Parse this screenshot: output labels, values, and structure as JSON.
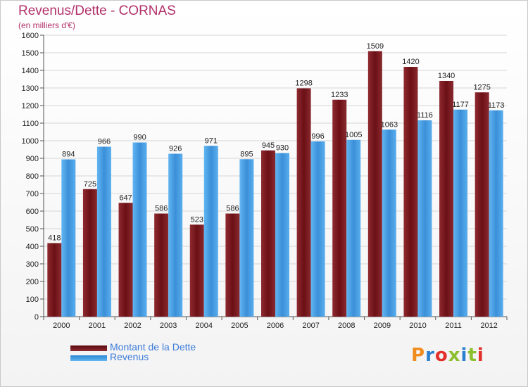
{
  "title": "Revenus/Dette - CORNAS",
  "subtitle": "(en milliers d'€)",
  "logo_text": "Proxiti",
  "colors": {
    "dette": "#7a1a20",
    "revenus": "#4aa3e8",
    "title": "#b2316a",
    "legend_text": "#3d7bd9"
  },
  "chart_data": {
    "type": "bar",
    "categories": [
      "2000",
      "2001",
      "2002",
      "2003",
      "2004",
      "2005",
      "2006",
      "2007",
      "2008",
      "2009",
      "2010",
      "2011",
      "2012"
    ],
    "series": [
      {
        "name": "Montant de la Dette",
        "values": [
          418,
          725,
          647,
          586,
          523,
          586,
          945,
          1298,
          1233,
          1509,
          1420,
          1340,
          1275
        ]
      },
      {
        "name": "Revenus",
        "values": [
          894,
          966,
          990,
          926,
          971,
          895,
          930,
          996,
          1005,
          1063,
          1116,
          1177,
          1173
        ]
      }
    ],
    "ylim": [
      0,
      1600
    ],
    "yticks": [
      0,
      100,
      200,
      300,
      400,
      500,
      600,
      700,
      800,
      900,
      1000,
      1100,
      1200,
      1300,
      1400,
      1500,
      1600
    ],
    "grid": true,
    "legend_position": "bottom-left"
  }
}
